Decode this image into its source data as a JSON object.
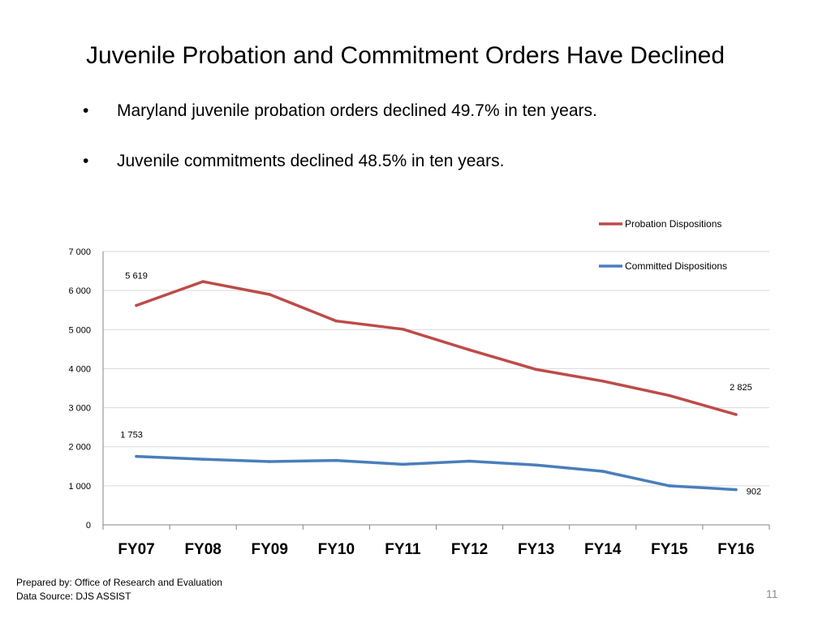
{
  "slide": {
    "title": "Juvenile Probation and Commitment Orders Have Declined",
    "bullet_symbol": "•",
    "bullets": [
      "Maryland juvenile probation orders declined 49.7% in ten years.",
      "Juvenile commitments declined 48.5% in ten years."
    ],
    "footer_line1": "Prepared by: Office of Research and Evaluation",
    "footer_line2": "Data Source: DJS ASSIST",
    "page_number": "11"
  },
  "chart_data": {
    "type": "line",
    "title": "",
    "xlabel": "",
    "ylabel": "",
    "categories": [
      "FY07",
      "FY08",
      "FY09",
      "FY10",
      "FY11",
      "FY12",
      "FY13",
      "FY14",
      "FY15",
      "FY16"
    ],
    "ylim": [
      0,
      7000
    ],
    "yticks": [
      0,
      1000,
      2000,
      3000,
      4000,
      5000,
      6000,
      7000
    ],
    "ytick_labels": [
      "0",
      "1 000",
      "2 000",
      "3 000",
      "4 000",
      "5 000",
      "6 000",
      "7 000"
    ],
    "grid": true,
    "legend_position": "top-right",
    "series": [
      {
        "name": "Probation Dispositions",
        "color": "#be4b48",
        "values": [
          5619,
          6230,
          5900,
          5220,
          5010,
          4480,
          3980,
          3680,
          3310,
          2825
        ],
        "data_labels": [
          {
            "index": 0,
            "text": "5 619"
          },
          {
            "index": 9,
            "text": "2 825"
          }
        ]
      },
      {
        "name": "Committed Dispositions",
        "color": "#4a7ebb",
        "values": [
          1753,
          1680,
          1620,
          1650,
          1550,
          1630,
          1530,
          1370,
          1000,
          902
        ],
        "data_labels": [
          {
            "index": 0,
            "text": "1 753"
          },
          {
            "index": 9,
            "text": "902"
          }
        ]
      }
    ]
  }
}
